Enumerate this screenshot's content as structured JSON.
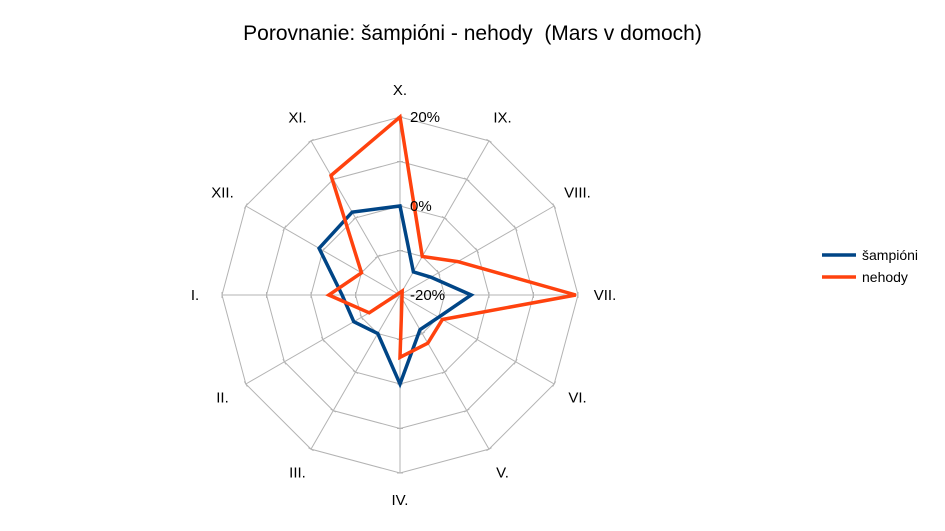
{
  "chart_data": {
    "type": "radar",
    "title": "Porovnanie: šampióni - nehody  (Mars v domoch)",
    "categories": [
      "X.",
      "IX.",
      "VIII.",
      "VII.",
      "VI.",
      "V.",
      "IV.",
      "III.",
      "II.",
      "I.",
      "XII.",
      "XI."
    ],
    "rlim": [
      -20,
      20
    ],
    "rticks": [
      -20,
      0,
      20
    ],
    "rtick_labels": [
      "-20%",
      "0%",
      "20%"
    ],
    "grid": true,
    "legend": "right",
    "series": [
      {
        "name": "šampióni",
        "color": "#004586",
        "values": [
          0,
          -14,
          -12,
          -4,
          -10,
          -11,
          0,
          -10,
          -8,
          -7,
          1,
          1.5
        ]
      },
      {
        "name": "nehody",
        "color": "#ff420e",
        "values": [
          20,
          -10,
          -5,
          19.5,
          -9,
          -7.5,
          -6,
          -21,
          -12,
          -4,
          -10,
          11
        ]
      }
    ]
  }
}
